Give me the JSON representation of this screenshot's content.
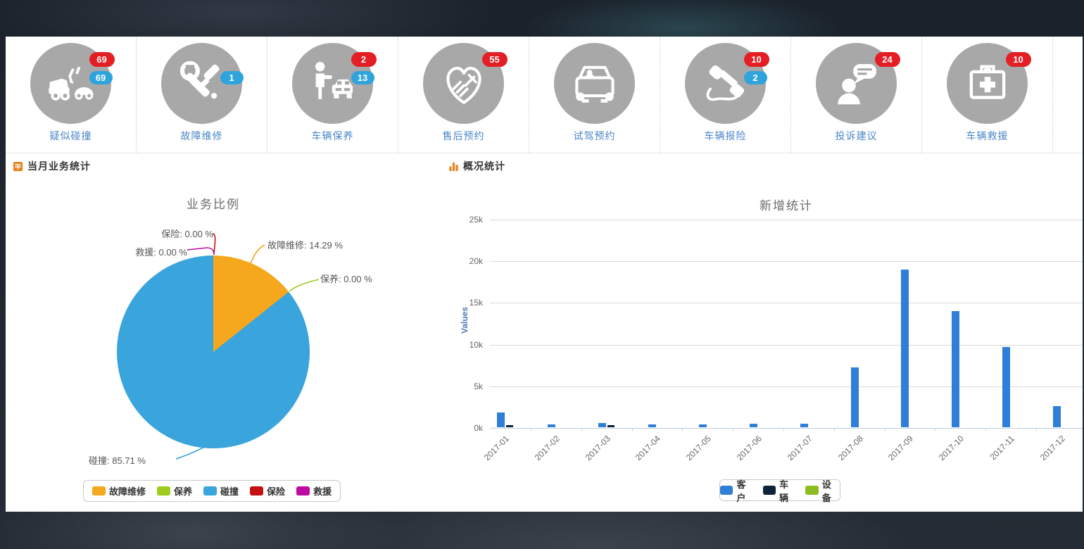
{
  "quick_actions": {
    "items": [
      {
        "label": "疑似碰撞",
        "icon": "car-collision-icon",
        "badges": [
          {
            "color": "red",
            "value": "69"
          },
          {
            "color": "blue",
            "value": "69"
          }
        ]
      },
      {
        "label": "故障维修",
        "icon": "repair-tools-icon",
        "badges": [
          {
            "color": "blue",
            "value": "1"
          }
        ]
      },
      {
        "label": "车辆保养",
        "icon": "person-taxi-icon",
        "badges": [
          {
            "color": "red",
            "value": "2"
          },
          {
            "color": "blue",
            "value": "13"
          }
        ]
      },
      {
        "label": "售后预约",
        "icon": "handshake-heart-icon",
        "badges": [
          {
            "color": "red",
            "value": "55"
          }
        ]
      },
      {
        "label": "试驾预约",
        "icon": "car-front-icon",
        "badges": []
      },
      {
        "label": "车辆报险",
        "icon": "phone-handset-icon",
        "badges": [
          {
            "color": "red",
            "value": "10"
          },
          {
            "color": "blue",
            "value": "2"
          }
        ]
      },
      {
        "label": "投诉建议",
        "icon": "person-speech-icon",
        "badges": [
          {
            "color": "red",
            "value": "24"
          }
        ]
      },
      {
        "label": "车辆救援",
        "icon": "first-aid-kit-icon",
        "badges": [
          {
            "color": "red",
            "value": "10"
          }
        ]
      }
    ],
    "badge_colors": {
      "red": "#e31e25",
      "blue": "#2ea3dc"
    }
  },
  "left_panel": {
    "header": "当月业务统计",
    "header_icon": "calendar-grid-icon"
  },
  "right_panel": {
    "header": "概况统计",
    "header_icon": "mini-bars-icon"
  },
  "chart_data": [
    {
      "type": "pie",
      "title": "业务比例",
      "slices": [
        {
          "name": "故障维修",
          "value": 14.29,
          "color": "#f5a71d"
        },
        {
          "name": "保养",
          "value": 0.0,
          "color": "#9fcc1c"
        },
        {
          "name": "碰撞",
          "value": 85.71,
          "color": "#3aa4dc"
        },
        {
          "name": "保险",
          "value": 0.0,
          "color": "#c21110"
        },
        {
          "name": "救援",
          "value": 0.0,
          "color": "#bd0ba2"
        }
      ],
      "labels": {
        "baoxian": "保险: 0.00 %",
        "jiuyuan": "救援: 0.00 %",
        "guzhang": "故障维修: 14.29 %",
        "baoyang": "保养: 0.00 %",
        "pengzhuang": "碰撞: 85.71 %"
      },
      "legend_position": "bottom"
    },
    {
      "type": "bar",
      "title": "新增统计",
      "ylabel": "Values",
      "ylim": [
        0,
        25000
      ],
      "yticks": [
        "0k",
        "5k",
        "10k",
        "15k",
        "20k",
        "25k"
      ],
      "grid": "horizontal",
      "legend_position": "bottom",
      "categories": [
        "2017-01",
        "2017-02",
        "2017-03",
        "2017-04",
        "2017-05",
        "2017-06",
        "2017-07",
        "2017-08",
        "2017-09",
        "2017-10",
        "2017-11",
        "2017-12"
      ],
      "series": [
        {
          "name": "客户",
          "color": "#2f7ed8",
          "values": [
            1800,
            350,
            500,
            300,
            350,
            400,
            400,
            7200,
            18900,
            13900,
            9600,
            2500
          ]
        },
        {
          "name": "车辆",
          "color": "#0d233a",
          "values": [
            270,
            0,
            250,
            0,
            0,
            0,
            0,
            0,
            0,
            0,
            0,
            0
          ]
        },
        {
          "name": "设备",
          "color": "#8bbc21",
          "values": [
            0,
            0,
            0,
            0,
            0,
            0,
            0,
            0,
            0,
            0,
            0,
            0
          ]
        }
      ]
    }
  ]
}
